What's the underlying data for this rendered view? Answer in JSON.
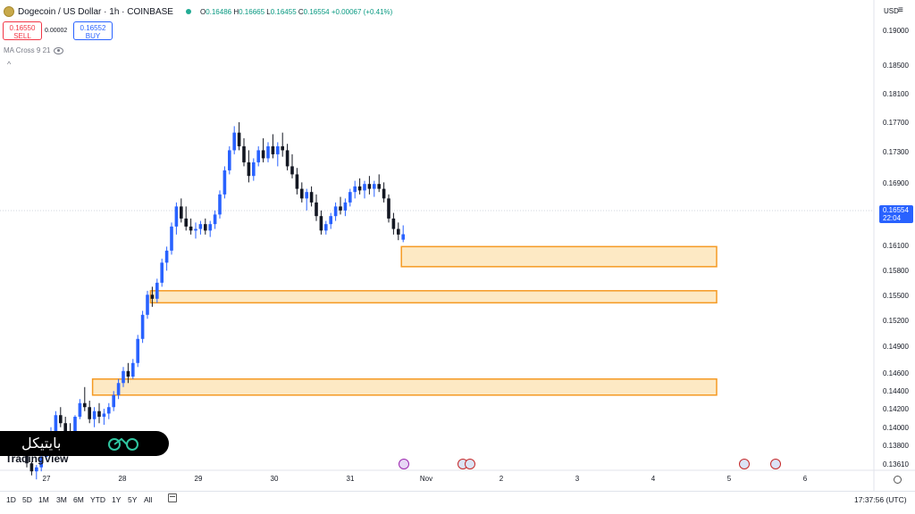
{
  "header": {
    "symbol": "Dogecoin / US Dollar · 1h · COINBASE",
    "open_label": "O",
    "open": "0.16486",
    "high_label": "H",
    "high": "0.16665",
    "low_label": "L",
    "low": "0.16455",
    "close_label": "C",
    "close": "0.16554",
    "change": "+0.00067 (+0.41%)"
  },
  "trade": {
    "sell_price": "0.16550",
    "sell_label": "SELL",
    "spread": "0.00002",
    "buy_price": "0.16552",
    "buy_label": "BUY"
  },
  "indicator": {
    "label": "MA Cross 9 21",
    "caret": "^"
  },
  "toolbar": {
    "currency": "USD",
    "menu": "≡"
  },
  "price_axis": [
    "0.19000",
    "0.18500",
    "0.18100",
    "0.17700",
    "0.17300",
    "0.16900",
    "0.16100",
    "0.15800",
    "0.15500",
    "0.15200",
    "0.14900",
    "0.14600",
    "0.14400",
    "0.14200",
    "0.14000",
    "0.13800",
    "0.13610"
  ],
  "current_price": {
    "value": "0.16554",
    "countdown": "22:04"
  },
  "time_axis": [
    "27",
    "28",
    "29",
    "30",
    "31",
    "Nov",
    "2",
    "3",
    "4",
    "5",
    "6"
  ],
  "timeframes": [
    "1D",
    "5D",
    "1M",
    "3M",
    "6M",
    "YTD",
    "1Y",
    "5Y",
    "All"
  ],
  "clock": "17:37:56 (UTC)",
  "logo": "TradingView",
  "watermark": "بایتیکل",
  "colors": {
    "up": "#2962ff",
    "down": "#131722",
    "zone_fill": "#fde9c4",
    "zone_border": "#f59a23"
  },
  "chart_data": {
    "type": "candlestick",
    "interval": "1h",
    "candles": [
      [
        0.138,
        0.1395,
        0.1365,
        0.137
      ],
      [
        0.137,
        0.1372,
        0.1355,
        0.136
      ],
      [
        0.136,
        0.1368,
        0.135,
        0.1365
      ],
      [
        0.1365,
        0.138,
        0.136,
        0.1378
      ],
      [
        0.1378,
        0.14,
        0.1375,
        0.1398
      ],
      [
        0.1398,
        0.1415,
        0.139,
        0.141
      ],
      [
        0.141,
        0.1435,
        0.1405,
        0.143
      ],
      [
        0.143,
        0.144,
        0.1415,
        0.142
      ],
      [
        0.142,
        0.1428,
        0.1405,
        0.141
      ],
      [
        0.141,
        0.142,
        0.14,
        0.1408
      ],
      [
        0.1408,
        0.143,
        0.1405,
        0.1428
      ],
      [
        0.1428,
        0.145,
        0.1425,
        0.1445
      ],
      [
        0.1445,
        0.1465,
        0.1435,
        0.144
      ],
      [
        0.144,
        0.1448,
        0.142,
        0.1425
      ],
      [
        0.1425,
        0.144,
        0.1415,
        0.1435
      ],
      [
        0.1435,
        0.1445,
        0.142,
        0.1428
      ],
      [
        0.1428,
        0.1438,
        0.1418,
        0.1432
      ],
      [
        0.1432,
        0.1445,
        0.1425,
        0.144
      ],
      [
        0.144,
        0.146,
        0.1435,
        0.1455
      ],
      [
        0.1455,
        0.1475,
        0.145,
        0.147
      ],
      [
        0.147,
        0.149,
        0.1465,
        0.1485
      ],
      [
        0.1485,
        0.1495,
        0.147,
        0.1478
      ],
      [
        0.1478,
        0.15,
        0.1475,
        0.1495
      ],
      [
        0.1495,
        0.153,
        0.149,
        0.1525
      ],
      [
        0.1525,
        0.156,
        0.152,
        0.1555
      ],
      [
        0.1555,
        0.1585,
        0.155,
        0.158
      ],
      [
        0.158,
        0.159,
        0.1565,
        0.1575
      ],
      [
        0.1575,
        0.16,
        0.157,
        0.1595
      ],
      [
        0.1595,
        0.1625,
        0.159,
        0.162
      ],
      [
        0.162,
        0.164,
        0.161,
        0.1635
      ],
      [
        0.1635,
        0.167,
        0.163,
        0.1665
      ],
      [
        0.1665,
        0.1695,
        0.1655,
        0.169
      ],
      [
        0.169,
        0.17,
        0.167,
        0.1675
      ],
      [
        0.1675,
        0.169,
        0.166,
        0.1665
      ],
      [
        0.1665,
        0.1675,
        0.1655,
        0.166
      ],
      [
        0.166,
        0.167,
        0.165,
        0.1662
      ],
      [
        0.1662,
        0.1672,
        0.1655,
        0.1668
      ],
      [
        0.1668,
        0.1675,
        0.1655,
        0.166
      ],
      [
        0.166,
        0.1672,
        0.1652,
        0.1668
      ],
      [
        0.1668,
        0.1685,
        0.1662,
        0.168
      ],
      [
        0.168,
        0.171,
        0.1675,
        0.1705
      ],
      [
        0.1705,
        0.174,
        0.17,
        0.1735
      ],
      [
        0.1735,
        0.1765,
        0.173,
        0.176
      ],
      [
        0.176,
        0.179,
        0.1755,
        0.1782
      ],
      [
        0.1782,
        0.1795,
        0.176,
        0.1765
      ],
      [
        0.1765,
        0.1775,
        0.174,
        0.1745
      ],
      [
        0.1745,
        0.176,
        0.172,
        0.1728
      ],
      [
        0.1728,
        0.175,
        0.1722,
        0.1745
      ],
      [
        0.1745,
        0.1765,
        0.174,
        0.176
      ],
      [
        0.176,
        0.1775,
        0.1745,
        0.175
      ],
      [
        0.175,
        0.177,
        0.1745,
        0.1765
      ],
      [
        0.1765,
        0.178,
        0.175,
        0.1755
      ],
      [
        0.1755,
        0.177,
        0.174,
        0.1765
      ],
      [
        0.1765,
        0.1782,
        0.1752,
        0.176
      ],
      [
        0.176,
        0.1768,
        0.1735,
        0.174
      ],
      [
        0.174,
        0.1755,
        0.1725,
        0.173
      ],
      [
        0.173,
        0.1738,
        0.1705,
        0.1712
      ],
      [
        0.1712,
        0.172,
        0.1695,
        0.17
      ],
      [
        0.17,
        0.1712,
        0.1685,
        0.1708
      ],
      [
        0.1708,
        0.1715,
        0.169,
        0.1695
      ],
      [
        0.1695,
        0.1705,
        0.1672,
        0.1678
      ],
      [
        0.1678,
        0.1685,
        0.1655,
        0.166
      ],
      [
        0.166,
        0.1672,
        0.1655,
        0.1668
      ],
      [
        0.1668,
        0.1682,
        0.1662,
        0.1678
      ],
      [
        0.1678,
        0.1695,
        0.1672,
        0.169
      ],
      [
        0.169,
        0.1702,
        0.168,
        0.1685
      ],
      [
        0.1685,
        0.17,
        0.1678,
        0.1695
      ],
      [
        0.1695,
        0.1712,
        0.169,
        0.1708
      ],
      [
        0.1708,
        0.1722,
        0.17,
        0.1715
      ],
      [
        0.1715,
        0.1725,
        0.1705,
        0.171
      ],
      [
        0.171,
        0.1722,
        0.17,
        0.1718
      ],
      [
        0.1718,
        0.1728,
        0.1705,
        0.1712
      ],
      [
        0.1712,
        0.1722,
        0.1702,
        0.1718
      ],
      [
        0.1718,
        0.173,
        0.1708,
        0.1712
      ],
      [
        0.1712,
        0.172,
        0.1695,
        0.17
      ],
      [
        0.17,
        0.1705,
        0.167,
        0.1675
      ],
      [
        0.1675,
        0.1682,
        0.1655,
        0.1662
      ],
      [
        0.1662,
        0.167,
        0.1648,
        0.1655
      ],
      [
        0.16486,
        0.16665,
        0.16455,
        0.16554
      ]
    ],
    "zones": [
      {
        "top": 0.164,
        "bottom": 0.1615,
        "from_index": 78,
        "to_index": 160
      },
      {
        "top": 0.1585,
        "bottom": 0.157,
        "from_index": 26,
        "to_index": 160
      },
      {
        "top": 0.1475,
        "bottom": 0.1455,
        "from_index": 14,
        "to_index": 160
      }
    ],
    "y_range": [
      0.1358,
      0.1925
    ]
  }
}
